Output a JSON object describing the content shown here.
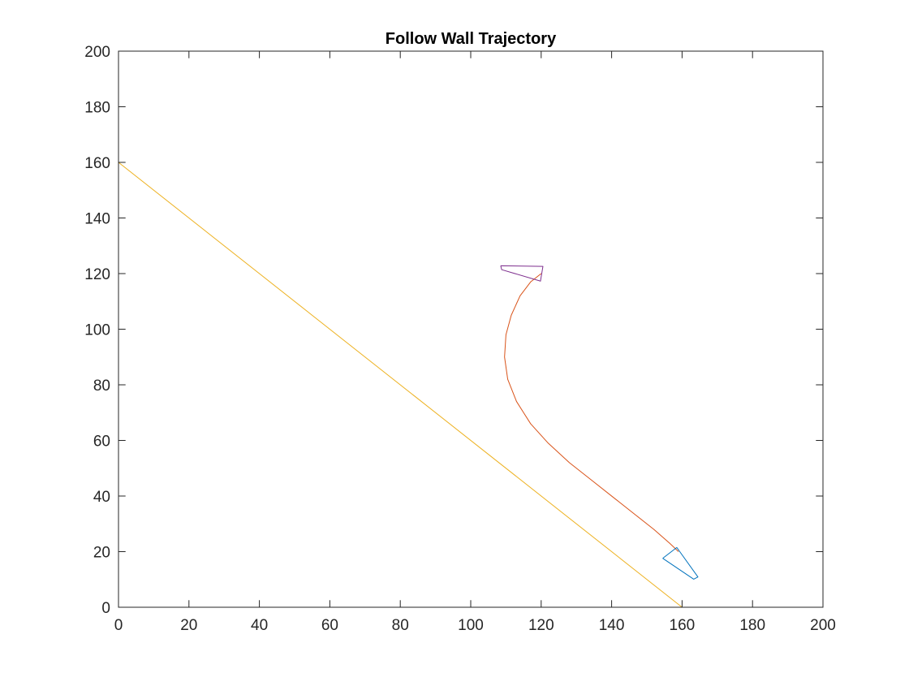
{
  "chart_data": {
    "type": "line",
    "title": "Follow Wall Trajectory",
    "xlabel": "",
    "ylabel": "",
    "xlim": [
      0,
      200
    ],
    "ylim": [
      0,
      200
    ],
    "xticks": [
      0,
      20,
      40,
      60,
      80,
      100,
      120,
      140,
      160,
      180,
      200
    ],
    "yticks": [
      0,
      20,
      40,
      60,
      80,
      100,
      120,
      140,
      160,
      180,
      200
    ],
    "grid": false,
    "legend": "none",
    "series": [
      {
        "kind": "wall-line",
        "color": "#EDB120",
        "x": [
          0,
          160
        ],
        "y": [
          160,
          0
        ]
      },
      {
        "kind": "trajectory",
        "color": "#D95319",
        "x": [
          120,
          117,
          114,
          111.5,
          110,
          109.6,
          110.5,
          113,
          117,
          122,
          128,
          134.5,
          141,
          147,
          152,
          156.5,
          159
        ],
        "y": [
          120,
          117,
          112,
          105,
          98,
          90,
          82,
          74,
          66,
          59,
          52,
          45.5,
          39,
          33,
          28,
          23,
          20
        ]
      },
      {
        "kind": "start-robot",
        "color": "#0072BD",
        "x": [
          154.5,
          158.5,
          164.5,
          163.3,
          154.5
        ],
        "y": [
          17.6,
          21.5,
          10.9,
          10.1,
          17.6
        ]
      },
      {
        "kind": "end-robot",
        "color": "#7E2F8E",
        "x": [
          108.5,
          120.5,
          119.8,
          108.8,
          108.5
        ],
        "y": [
          122.8,
          122.6,
          117.3,
          121.4,
          122.8
        ]
      }
    ]
  }
}
